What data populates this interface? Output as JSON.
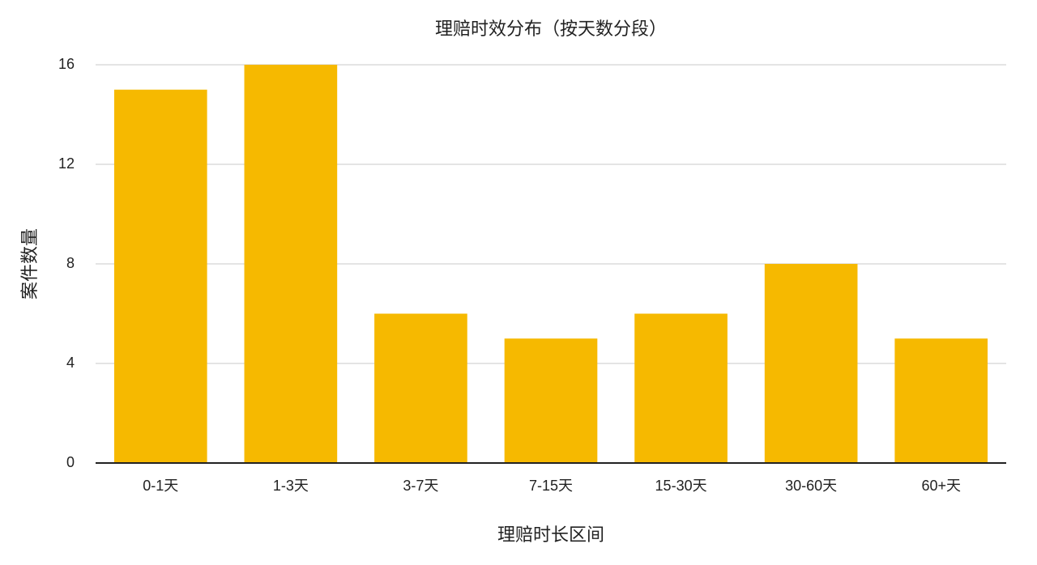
{
  "chart_data": {
    "type": "bar",
    "title": "理赔时效分布（按天数分段）",
    "x_label": "理赔时长区间",
    "y_label": "案件数量",
    "categories": [
      "0-1天",
      "1-3天",
      "3-7天",
      "7-15天",
      "15-30天",
      "30-60天",
      "60+天"
    ],
    "values": [
      15,
      16,
      6,
      5,
      6,
      8,
      5
    ],
    "color": "#f6b900",
    "ylim": [
      0,
      16
    ],
    "yticks": [
      0,
      4,
      8,
      12,
      16
    ],
    "grid": true
  }
}
